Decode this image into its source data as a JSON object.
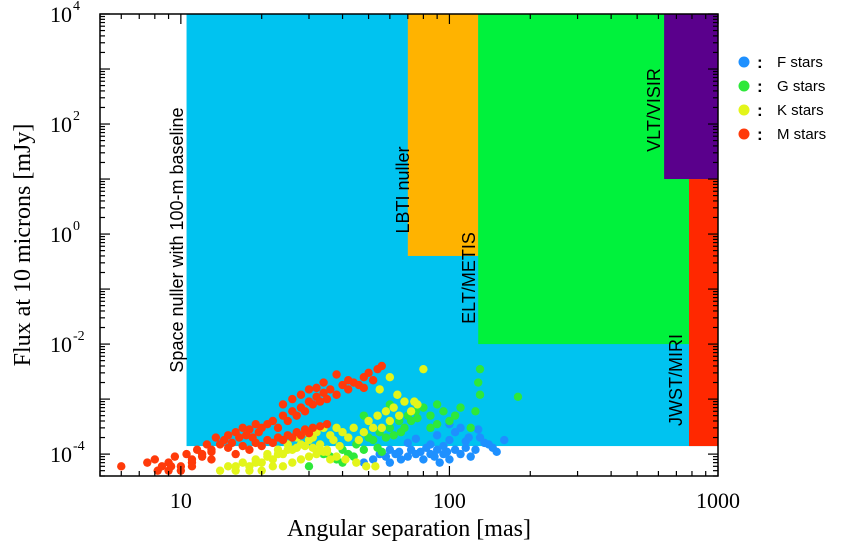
{
  "chart_data": {
    "type": "scatter",
    "xlabel": "Angular separation [mas]",
    "ylabel": "Flux at 10 microns [mJy]",
    "x_scale": "log",
    "y_scale": "log",
    "xlim": [
      5,
      1000
    ],
    "ylim": [
      4e-05,
      10000
    ],
    "x_ticks": [
      {
        "value": 10,
        "label": "10"
      },
      {
        "value": 100,
        "label": "100"
      },
      {
        "value": 1000,
        "label": "1000"
      }
    ],
    "y_ticks": [
      {
        "value": 0.0001,
        "base": "10",
        "exp": "-4"
      },
      {
        "value": 0.01,
        "base": "10",
        "exp": "-2"
      },
      {
        "value": 1,
        "base": "10",
        "exp": "0"
      },
      {
        "value": 100,
        "base": "10",
        "exp": "2"
      },
      {
        "value": 10000,
        "base": "10",
        "exp": "4"
      }
    ],
    "regions": [
      {
        "label": "Space nuller with 100-m baseline",
        "x_range": [
          10.5,
          1000
        ],
        "y_range": [
          0.00014,
          10000
        ],
        "color": "#00c3f0",
        "label_color": "#1e90e0"
      },
      {
        "label": "LBTI nuller",
        "x_range": [
          70,
          128
        ],
        "y_range": [
          0.4,
          10000
        ],
        "color": "#ffb300",
        "label_color": "#000000"
      },
      {
        "label": "ELT/METIS",
        "x_range": [
          128,
          780
        ],
        "y_range": [
          0.01,
          10000
        ],
        "color": "#00f23c",
        "label_color": "#000000"
      },
      {
        "label": "VLT/VISIR",
        "x_range": [
          630,
          1000
        ],
        "y_range": [
          10,
          10000
        ],
        "color": "#5a008c",
        "label_color": "#000000"
      },
      {
        "label": "JWST/MIRI",
        "x_range": [
          780,
          1000
        ],
        "y_range": [
          0.00014,
          10
        ],
        "color": "#ff2800",
        "label_color": "#000000"
      }
    ],
    "legend": {
      "placement": "right",
      "separator": ":",
      "entries": [
        {
          "name": "F stars",
          "color": "#1e90ff"
        },
        {
          "name": "G stars",
          "color": "#2ee83a"
        },
        {
          "name": "K stars",
          "color": "#e3f51a"
        },
        {
          "name": "M stars",
          "color": "#ff3a0a"
        }
      ]
    },
    "series": [
      {
        "name": "F stars",
        "color": "#1e90ff",
        "x": [
          48,
          52,
          55,
          58,
          60,
          63,
          66,
          70,
          72,
          75,
          78,
          80,
          82,
          85,
          88,
          90,
          92,
          95,
          98,
          100,
          105,
          110,
          115,
          120,
          125,
          130,
          140,
          150,
          160,
          85,
          90,
          100,
          110,
          118,
          128,
          135,
          145,
          70,
          75,
          95,
          115,
          100,
          60,
          65,
          105
        ],
        "y": [
          7e-05,
          8e-05,
          0.0001,
          9e-05,
          0.00012,
          0.0001,
          8e-05,
          9e-05,
          0.00012,
          0.0001,
          0.00011,
          8e-05,
          0.00013,
          0.0001,
          9e-05,
          0.00012,
          7e-05,
          0.0001,
          0.00011,
          8e-05,
          0.00012,
          0.0001,
          0.00013,
          9e-05,
          0.00012,
          0.0002,
          0.00015,
          0.00011,
          0.00018,
          0.00015,
          0.00022,
          0.00018,
          0.0003,
          0.0002,
          0.00028,
          0.00016,
          0.00013,
          0.00016,
          0.00019,
          0.00014,
          0.00017,
          0.00035,
          7e-05,
          0.00011,
          0.00025
        ]
      },
      {
        "name": "G stars",
        "color": "#2ee83a",
        "x": [
          30,
          34,
          38,
          40,
          42,
          45,
          48,
          50,
          52,
          55,
          58,
          60,
          62,
          65,
          68,
          70,
          72,
          75,
          80,
          85,
          90,
          95,
          100,
          110,
          120,
          130,
          180,
          130,
          128,
          125,
          85,
          90,
          105,
          60,
          48,
          44,
          54,
          66,
          76,
          36,
          40,
          56
        ],
        "y": [
          6e-05,
          0.0001,
          8e-05,
          0.00012,
          0.0001,
          0.00015,
          0.00012,
          0.0002,
          0.00018,
          0.00025,
          0.0002,
          0.0003,
          0.00022,
          0.0004,
          0.0003,
          0.0005,
          0.0004,
          0.0006,
          0.0007,
          0.0005,
          0.0008,
          0.0006,
          0.0004,
          0.0007,
          0.0003,
          0.0012,
          0.0011,
          0.0035,
          0.002,
          0.0006,
          0.0003,
          0.00035,
          0.0005,
          0.0008,
          0.0005,
          9e-05,
          0.00013,
          0.00025,
          0.00045,
          9e-05,
          7e-05,
          0.00011
        ]
      },
      {
        "name": "K stars",
        "color": "#e3f51a",
        "x": [
          14,
          15,
          16,
          17,
          18,
          19,
          20,
          21,
          22,
          23,
          24,
          25,
          26,
          27,
          28,
          29,
          30,
          31,
          32,
          33,
          34,
          35,
          36,
          37,
          38,
          39,
          40,
          42,
          44,
          46,
          48,
          50,
          52,
          54,
          56,
          58,
          60,
          62,
          65,
          68,
          72,
          76,
          80,
          60,
          64,
          74,
          55,
          18,
          20,
          22,
          24,
          26,
          28,
          30,
          32,
          34,
          36,
          16,
          19,
          21,
          23,
          25,
          27,
          29,
          31,
          33,
          35,
          38,
          41,
          45,
          49,
          53
        ],
        "y": [
          5e-05,
          6e-05,
          5e-05,
          7e-05,
          6e-05,
          8e-05,
          7e-05,
          0.0001,
          8e-05,
          0.00012,
          0.0001,
          0.00015,
          0.00012,
          0.0002,
          0.00015,
          0.00025,
          0.00018,
          0.0002,
          0.00025,
          0.00015,
          0.0003,
          0.00012,
          0.00022,
          0.00018,
          0.0003,
          0.00014,
          0.00025,
          0.0002,
          0.0003,
          0.00018,
          0.00025,
          0.0004,
          0.0003,
          0.0005,
          0.0003,
          0.0006,
          0.0004,
          0.0007,
          0.0005,
          0.0009,
          0.0006,
          0.0008,
          0.0035,
          0.0025,
          0.0012,
          0.0009,
          0.0015,
          5e-05,
          5e-05,
          6e-05,
          6e-05,
          7e-05,
          8e-05,
          9e-05,
          0.0001,
          0.00011,
          8e-05,
          6e-05,
          7e-05,
          9e-05,
          0.0001,
          0.00012,
          0.00013,
          0.00014,
          0.00013,
          0.00012,
          0.00011,
          9e-05,
          8e-05,
          7e-05,
          6e-05,
          6e-05
        ]
      },
      {
        "name": "M stars",
        "color": "#ff3a0a",
        "x": [
          6,
          7.5,
          8,
          8.5,
          9,
          9.5,
          10,
          10.5,
          11,
          11.5,
          12,
          12.5,
          13,
          13.5,
          14,
          14.5,
          15,
          15.5,
          16,
          16.5,
          17,
          17.5,
          18,
          18.5,
          19,
          19.5,
          20,
          21,
          22,
          23,
          24,
          25,
          26,
          27,
          28,
          29,
          30,
          31,
          32,
          33,
          34,
          35,
          36,
          38,
          40,
          42,
          44,
          46,
          48,
          50,
          52,
          54,
          56,
          12,
          13,
          15,
          17,
          19,
          21,
          23,
          25,
          27,
          29,
          31,
          33,
          35,
          11,
          13,
          16,
          18,
          20,
          22,
          24,
          26,
          28,
          30,
          24,
          26,
          28,
          30,
          32,
          34,
          38,
          42,
          48,
          9,
          10,
          11,
          8.2,
          9.2
        ],
        "y": [
          6e-05,
          7e-05,
          8e-05,
          6e-05,
          7e-05,
          9e-05,
          6e-05,
          0.0001,
          8e-05,
          0.00012,
          0.0001,
          0.00015,
          0.00012,
          0.0002,
          0.00015,
          0.00018,
          0.00022,
          0.00016,
          0.00025,
          0.0002,
          0.0003,
          0.00022,
          0.00028,
          0.0002,
          0.00035,
          0.00025,
          0.0003,
          0.00035,
          0.0004,
          0.0003,
          0.0005,
          0.0004,
          0.0006,
          0.0005,
          0.0007,
          0.0006,
          0.0009,
          0.0008,
          0.0011,
          0.0009,
          0.0013,
          0.001,
          0.0015,
          0.0012,
          0.0018,
          0.0015,
          0.002,
          0.0018,
          0.0025,
          0.003,
          0.0022,
          0.0035,
          0.004,
          9e-05,
          0.00011,
          0.00013,
          0.00014,
          0.00016,
          0.00018,
          0.0002,
          0.00022,
          0.00025,
          0.00028,
          0.0003,
          0.00032,
          0.00035,
          7e-05,
          8e-05,
          0.0001,
          0.00012,
          0.00014,
          0.00016,
          0.00018,
          0.0002,
          0.00022,
          0.00024,
          0.0008,
          0.001,
          0.0012,
          0.0015,
          0.0016,
          0.002,
          0.0028,
          0.0022,
          0.0016,
          5e-05,
          5e-05,
          6e-05,
          5e-05,
          6e-05
        ]
      }
    ]
  }
}
